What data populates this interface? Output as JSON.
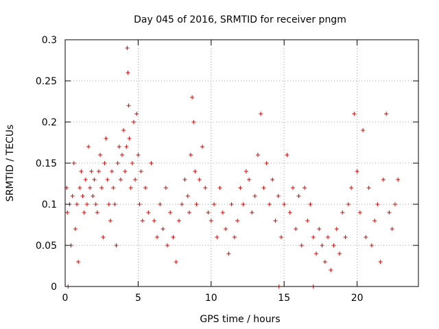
{
  "chart_data": {
    "type": "scatter",
    "title": "Day 045 of 2016, SRMTID for receiver pngm",
    "xlabel": "GPS time / hours",
    "ylabel": "SRMTID / TECUs",
    "xlim": [
      0,
      24.2
    ],
    "ylim": [
      0,
      0.3
    ],
    "xticks": [
      0,
      5,
      10,
      15,
      20
    ],
    "xtick_labels": [
      "0",
      "5",
      "10",
      "15",
      "20"
    ],
    "yticks": [
      0,
      0.05,
      0.1,
      0.15,
      0.2,
      0.25,
      0.3
    ],
    "ytick_labels": [
      "0",
      "0.05",
      "0.1",
      "0.15",
      "0.2",
      "0.25",
      "0.3"
    ],
    "grid": true,
    "marker": "plus",
    "series_color": "#dd0000",
    "series": [
      {
        "name": "SRMTID",
        "description": "representative sample of the dense scatter",
        "x": [
          0.1,
          0.15,
          0.3,
          0.4,
          0.5,
          0.6,
          0.7,
          0.8,
          0.9,
          1.0,
          1.1,
          1.2,
          1.3,
          1.4,
          1.5,
          1.6,
          1.7,
          1.8,
          1.9,
          2.0,
          2.1,
          2.2,
          2.3,
          2.4,
          2.5,
          2.6,
          2.7,
          2.8,
          2.9,
          3.0,
          3.1,
          3.2,
          3.3,
          3.4,
          3.5,
          3.6,
          3.7,
          3.8,
          3.9,
          4.0,
          4.1,
          4.2,
          4.25,
          4.3,
          4.35,
          4.4,
          4.5,
          4.6,
          4.7,
          4.8,
          4.9,
          5.0,
          5.1,
          5.2,
          5.3,
          5.5,
          5.7,
          5.9,
          6.1,
          6.3,
          6.5,
          6.7,
          6.9,
          7.0,
          7.2,
          7.4,
          7.6,
          7.8,
          8.0,
          8.2,
          8.4,
          8.5,
          8.6,
          8.7,
          8.8,
          8.9,
          9.0,
          9.2,
          9.4,
          9.6,
          9.8,
          10.0,
          10.2,
          10.4,
          10.6,
          10.8,
          11.0,
          11.2,
          11.4,
          11.6,
          11.8,
          12.0,
          12.2,
          12.4,
          12.6,
          12.8,
          13.0,
          13.2,
          13.4,
          13.6,
          13.8,
          14.0,
          14.2,
          14.4,
          14.6,
          14.8,
          15.0,
          15.2,
          15.4,
          15.6,
          15.8,
          16.0,
          16.2,
          16.4,
          16.6,
          16.8,
          17.0,
          17.2,
          17.4,
          17.6,
          17.8,
          18.0,
          18.2,
          18.4,
          18.6,
          18.8,
          19.0,
          19.2,
          19.4,
          19.6,
          19.8,
          20.0,
          20.2,
          20.4,
          20.6,
          20.8,
          21.0,
          21.2,
          21.4,
          21.6,
          21.8,
          22.0,
          22.2,
          22.4,
          22.6,
          22.8,
          0.2,
          14.65,
          17.0
        ],
        "y": [
          0.12,
          0.09,
          0.1,
          0.05,
          0.11,
          0.15,
          0.07,
          0.1,
          0.03,
          0.12,
          0.14,
          0.11,
          0.09,
          0.13,
          0.1,
          0.17,
          0.12,
          0.14,
          0.11,
          0.13,
          0.1,
          0.09,
          0.14,
          0.16,
          0.12,
          0.06,
          0.15,
          0.18,
          0.13,
          0.1,
          0.08,
          0.14,
          0.12,
          0.1,
          0.05,
          0.15,
          0.17,
          0.13,
          0.16,
          0.19,
          0.14,
          0.17,
          0.29,
          0.26,
          0.22,
          0.18,
          0.12,
          0.15,
          0.2,
          0.13,
          0.21,
          0.16,
          0.1,
          0.14,
          0.08,
          0.12,
          0.09,
          0.15,
          0.08,
          0.06,
          0.1,
          0.07,
          0.12,
          0.05,
          0.09,
          0.06,
          0.03,
          0.08,
          0.1,
          0.13,
          0.11,
          0.09,
          0.16,
          0.23,
          0.2,
          0.14,
          0.1,
          0.13,
          0.17,
          0.12,
          0.09,
          0.08,
          0.1,
          0.06,
          0.12,
          0.09,
          0.07,
          0.04,
          0.1,
          0.06,
          0.08,
          0.12,
          0.1,
          0.14,
          0.13,
          0.09,
          0.11,
          0.16,
          0.21,
          0.12,
          0.15,
          0.1,
          0.13,
          0.08,
          0.11,
          0.06,
          0.1,
          0.16,
          0.09,
          0.12,
          0.07,
          0.11,
          0.05,
          0.12,
          0.08,
          0.1,
          0.06,
          0.04,
          0.07,
          0.05,
          0.03,
          0.06,
          0.02,
          0.05,
          0.07,
          0.04,
          0.09,
          0.06,
          0.1,
          0.12,
          0.21,
          0.14,
          0.09,
          0.19,
          0.06,
          0.12,
          0.05,
          0.08,
          0.1,
          0.03,
          0.13,
          0.21,
          0.09,
          0.07,
          0.1,
          0.13,
          0.0,
          0.0,
          0.0
        ]
      }
    ]
  }
}
